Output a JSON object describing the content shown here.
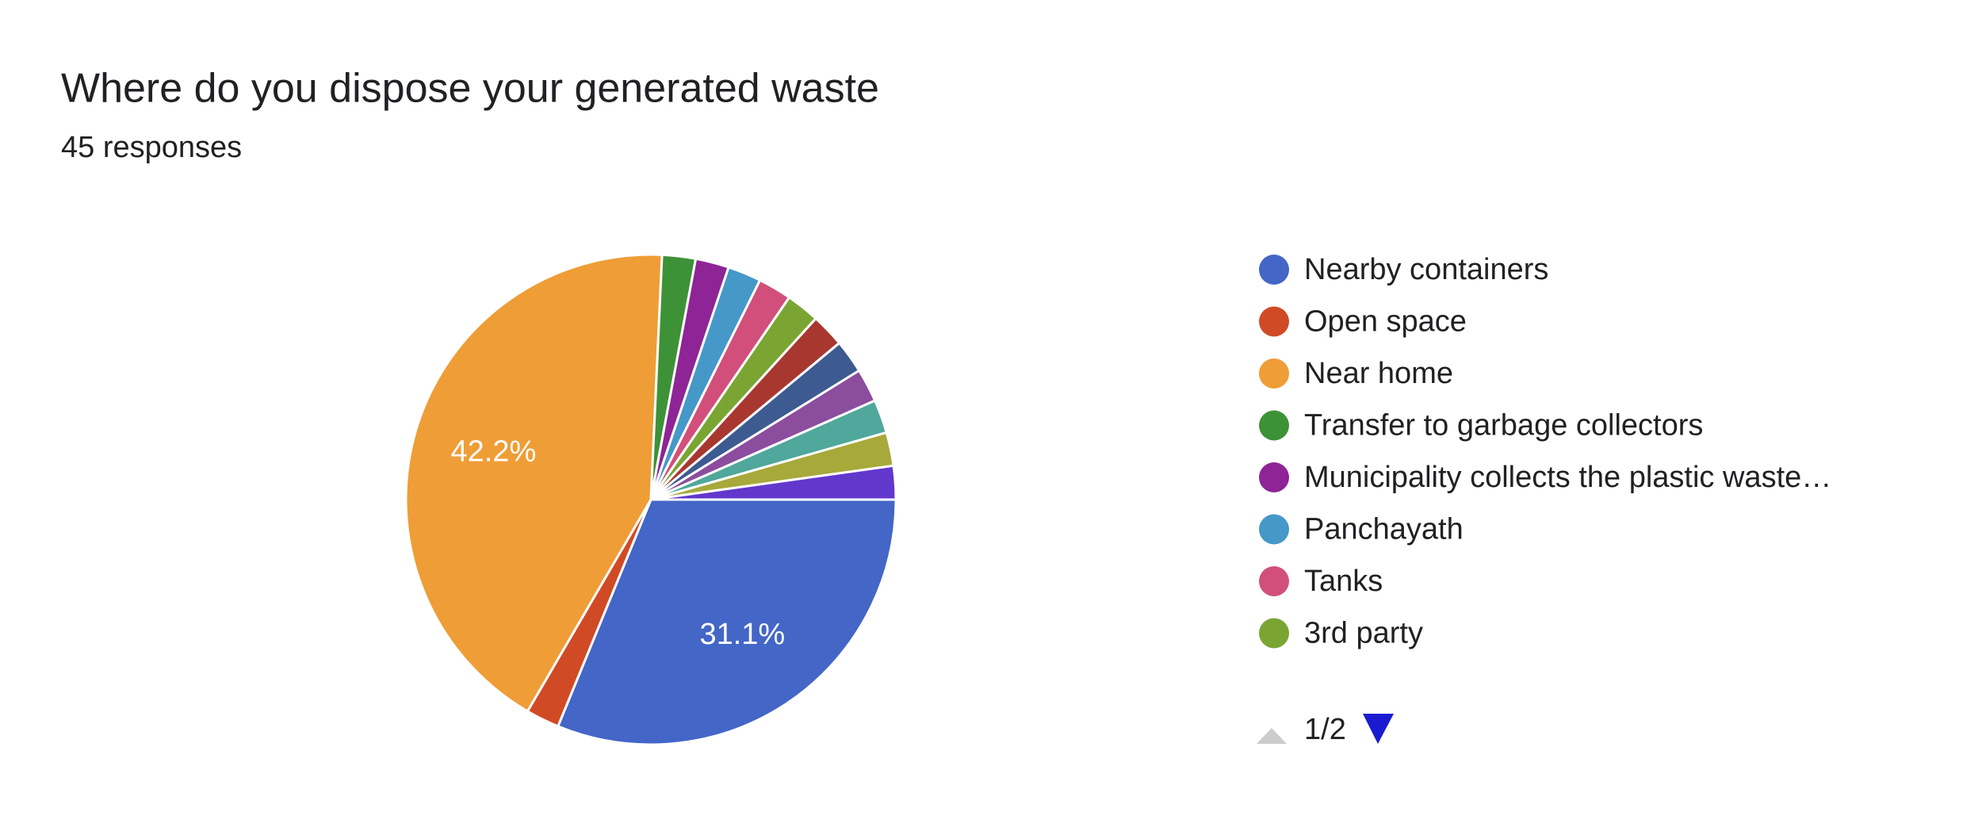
{
  "chart_data": {
    "type": "pie",
    "title": "Where do you dispose your generated waste",
    "subtitle": "45 responses",
    "categories": [
      "Nearby containers",
      "Open space",
      "Near home",
      "Transfer to garbage collectors",
      "Municipality collects the plastic waste…",
      "Panchayath",
      "Tanks",
      "3rd party",
      null,
      null,
      null,
      null,
      null,
      null
    ],
    "values": [
      31.1,
      2.2,
      42.2,
      2.2,
      2.2,
      2.2,
      2.2,
      2.2,
      2.2,
      2.2,
      2.2,
      2.2,
      2.2,
      2.2
    ],
    "value_labels": [
      "31.1%",
      null,
      "42.2%",
      null,
      null,
      null,
      null,
      null,
      null,
      null,
      null,
      null,
      null,
      null
    ],
    "colors": [
      "#4366c7",
      "#d04a25",
      "#ef9d36",
      "#3d9237",
      "#8e2496",
      "#4598c8",
      "#d24f7b",
      "#7aa532",
      "#a83730",
      "#3d5b91",
      "#8c4d9e",
      "#4fa89b",
      "#a7a93a",
      "#6237cc"
    ],
    "legend_page": "1/2"
  }
}
